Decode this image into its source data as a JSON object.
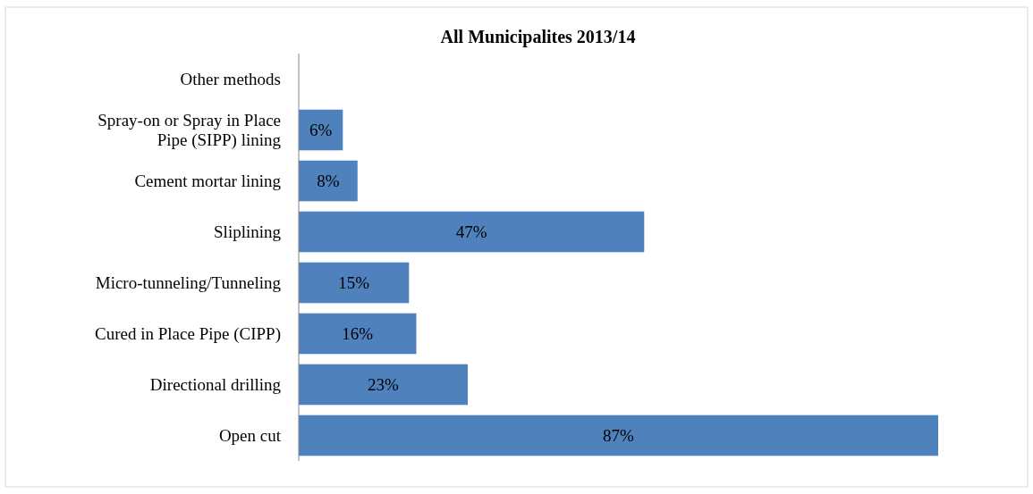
{
  "chart_data": {
    "type": "bar",
    "orientation": "horizontal",
    "title": "All  Municipalites 2013/14",
    "categories": [
      "Other methods",
      "Spray-on or Spray in Place Pipe (SIPP) lining",
      "Cement mortar lining",
      "Sliplining",
      "Micro-tunneling/Tunneling",
      "Cured in Place Pipe (CIPP)",
      "Directional drilling",
      "Open cut"
    ],
    "values": [
      null,
      6,
      8,
      47,
      15,
      16,
      23,
      87
    ],
    "value_labels": [
      null,
      "6%",
      "8%",
      "47%",
      "15%",
      "16%",
      "23%",
      "87%"
    ],
    "color": "#4f81bd"
  }
}
